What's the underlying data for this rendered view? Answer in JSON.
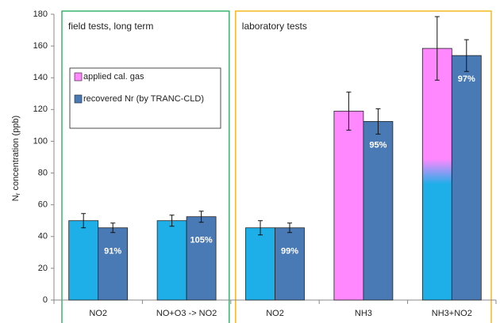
{
  "chart_data": {
    "type": "bar",
    "categories": [
      "NO2",
      "NO+O3 -> NO2",
      "NO2",
      "NH3",
      "NH3+NO2"
    ],
    "series": [
      {
        "name": "applied cal. gas",
        "color": "#ff88ff",
        "colors": [
          "#1eaee8",
          "#1eaee8",
          "#1eaee8",
          "#ff88ff",
          [
            "#1eaee8",
            "#ff88ff"
          ]
        ],
        "values": [
          50,
          50,
          45.5,
          119,
          158.5
        ],
        "errors": [
          4.5,
          3.5,
          4.5,
          12,
          20
        ]
      },
      {
        "name": "recovered Nr (by TRANC-CLD)",
        "color": "#4a7ab5",
        "values": [
          45.5,
          52.5,
          45.5,
          112.5,
          154
        ],
        "errors": [
          3,
          3.5,
          3,
          8,
          10
        ],
        "data_labels": [
          "91%",
          "105%",
          "99%",
          "95%",
          "97%"
        ]
      }
    ],
    "ylabel": {
      "main": "N",
      "sub": "r",
      "rest": " concentration  (ppb)"
    },
    "ylim": [
      0,
      180
    ],
    "yticks": [
      0,
      20,
      40,
      60,
      80,
      100,
      120,
      140,
      160,
      180
    ],
    "regions": [
      {
        "label": "field tests, long term",
        "color": "#3cb371"
      },
      {
        "label": "laboratory tests",
        "color": "#f5b820"
      }
    ],
    "grid": false
  }
}
